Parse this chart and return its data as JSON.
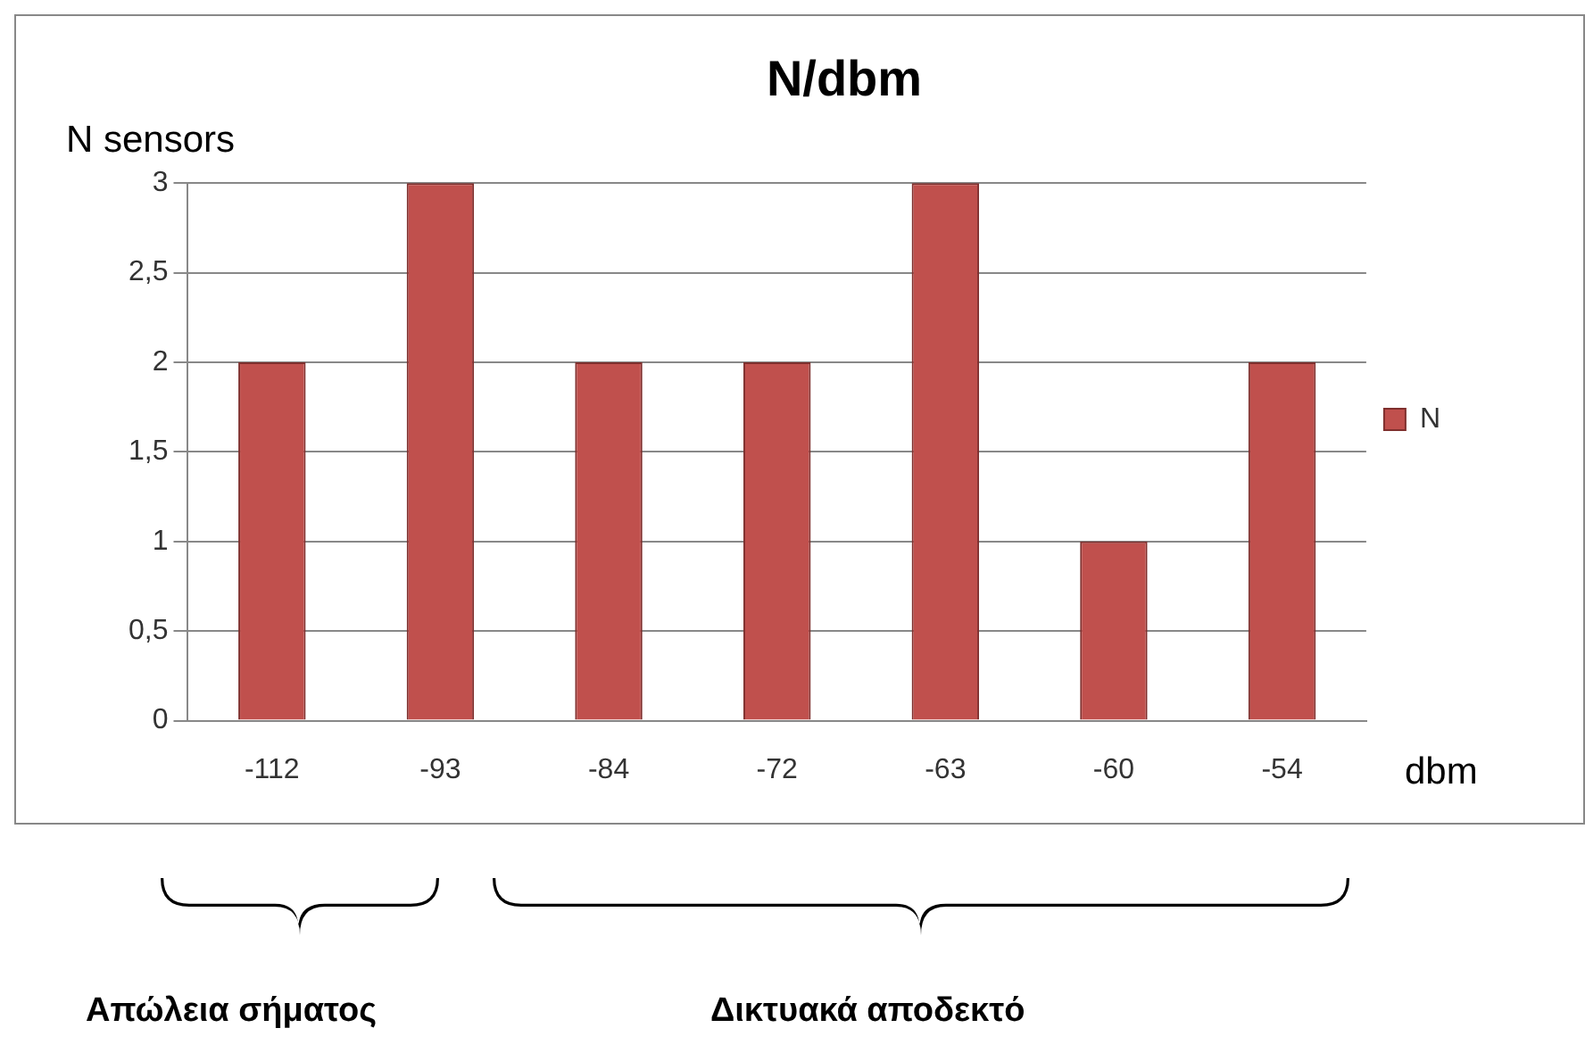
{
  "chart_data": {
    "type": "bar",
    "title": "N/dbm",
    "ylabel": "N sensors",
    "xlabel": "dbm",
    "categories": [
      "-112",
      "-93",
      "-84",
      "-72",
      "-63",
      "-60",
      "-54"
    ],
    "series": [
      {
        "name": "N",
        "color": "#c0504d",
        "values": [
          2,
          3,
          2,
          2,
          3,
          1,
          2
        ]
      }
    ],
    "ylim": [
      0,
      3
    ],
    "yticks": [
      0,
      {
        "value": 0.5,
        "label": "0,5"
      },
      1,
      {
        "value": 1.5,
        "label": "1,5"
      },
      2,
      {
        "value": 2.5,
        "label": "2,5"
      },
      3
    ],
    "grid": "y",
    "legend": "right",
    "annotations": [
      "Απώλεια σήματος",
      "Δικτυακά αποδεκτό"
    ]
  }
}
